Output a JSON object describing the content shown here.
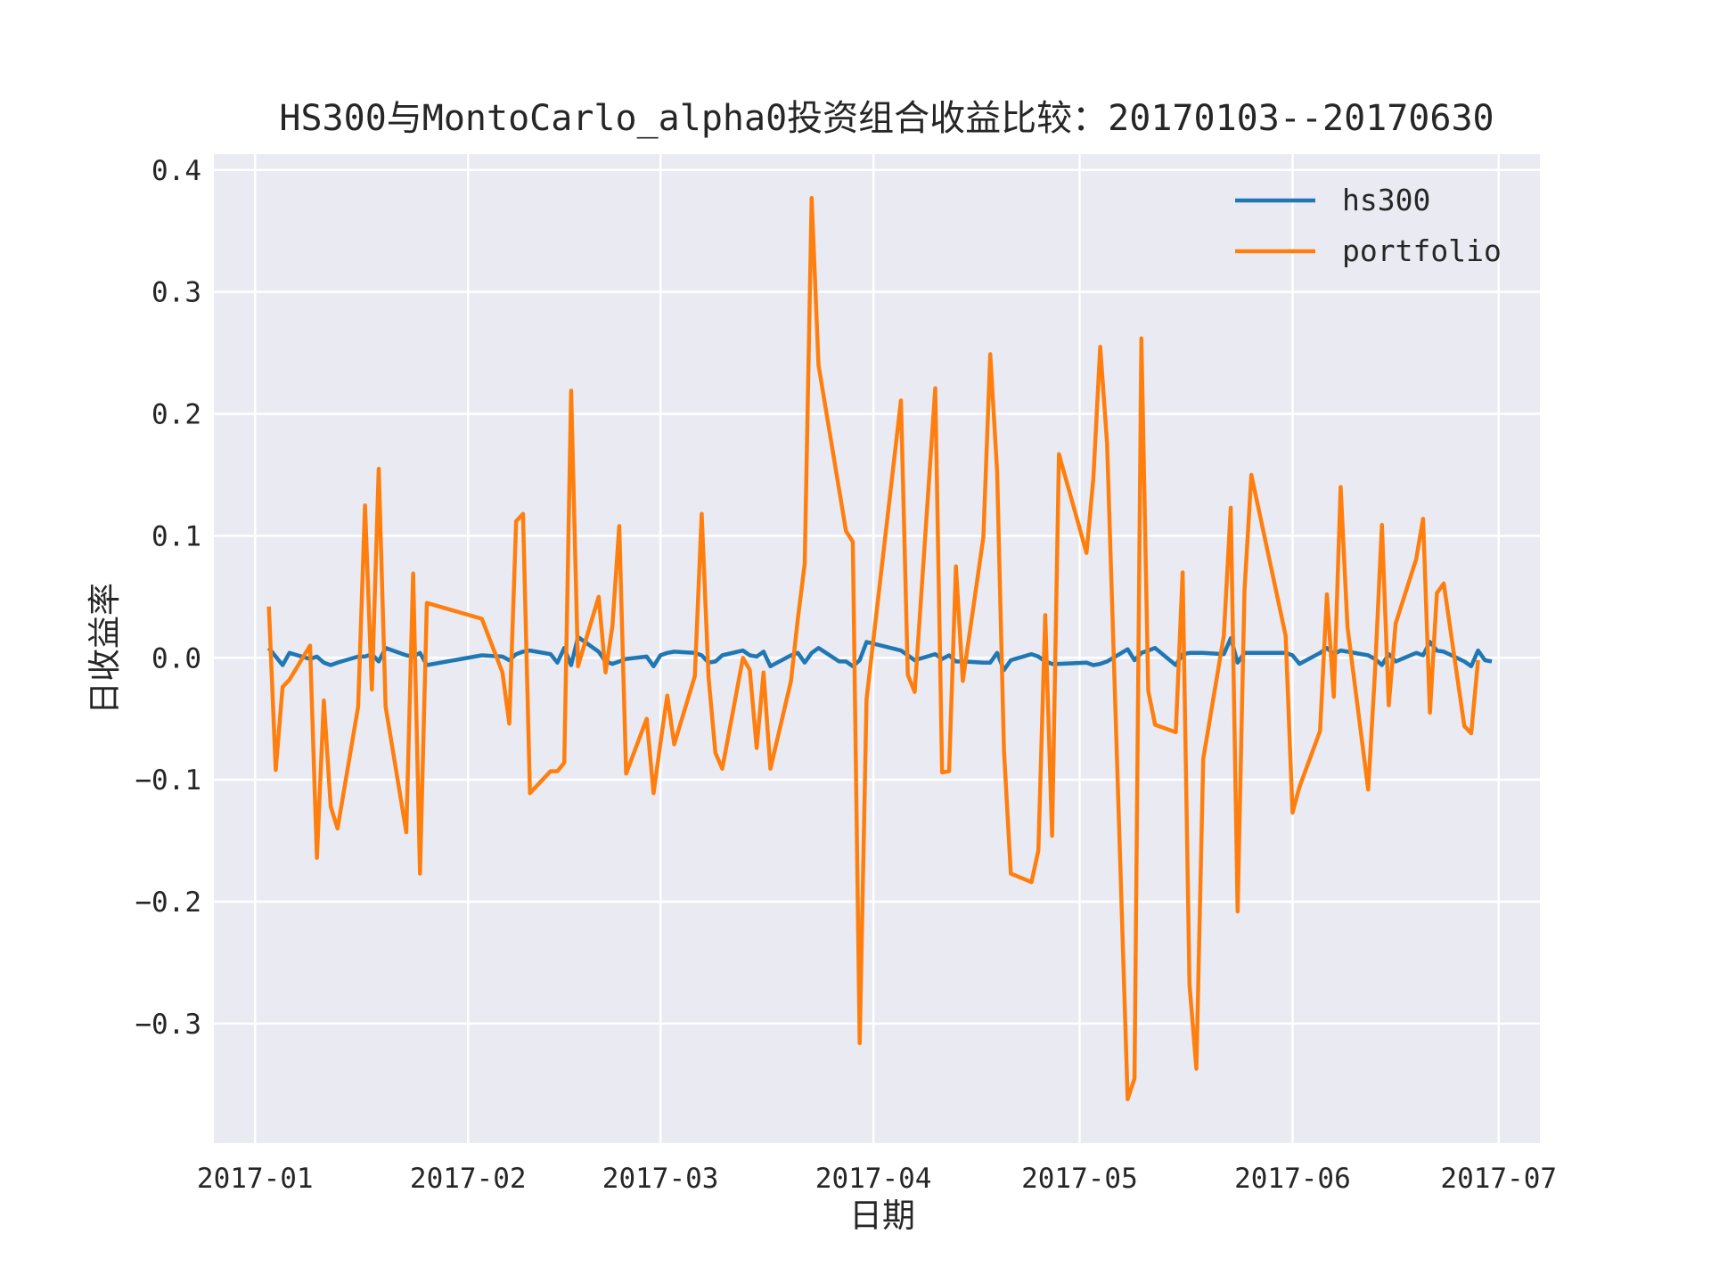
{
  "chart_data": {
    "type": "line",
    "title": "HS300与MontoCarlo_alpha0投资组合收益比较：20170103--20170630",
    "xlabel": "日期",
    "ylabel": "日收益率",
    "x_type": "date",
    "xlim": [
      "2016-12-26",
      "2017-07-07"
    ],
    "ylim": [
      -0.398,
      0.413
    ],
    "x_ticks": [
      "2017-01-01",
      "2017-02-01",
      "2017-03-01",
      "2017-04-01",
      "2017-05-01",
      "2017-06-01",
      "2017-07-01"
    ],
    "x_tick_labels": [
      "2017-01",
      "2017-02",
      "2017-03",
      "2017-04",
      "2017-05",
      "2017-06",
      "2017-07"
    ],
    "y_ticks": [
      -0.3,
      -0.2,
      -0.1,
      0.0,
      0.1,
      0.2,
      0.3,
      0.4
    ],
    "y_tick_labels": [
      "−0.3",
      "−0.2",
      "−0.1",
      "0.0",
      "0.1",
      "0.2",
      "0.3",
      "0.4"
    ],
    "grid": true,
    "legend_position": "top-right",
    "background": "#EAEAF2",
    "series": [
      {
        "name": "hs300",
        "color": "#1F77B4",
        "points": [
          [
            "2017-01-03",
            0.008
          ],
          [
            "2017-01-04",
            0.001
          ],
          [
            "2017-01-05",
            -0.006
          ],
          [
            "2017-01-06",
            0.004
          ],
          [
            "2017-01-09",
            -0.001
          ],
          [
            "2017-01-10",
            0.001
          ],
          [
            "2017-01-11",
            -0.004
          ],
          [
            "2017-01-12",
            -0.006
          ],
          [
            "2017-01-13",
            -0.004
          ],
          [
            "2017-01-16",
            0.001
          ],
          [
            "2017-01-17",
            0.001
          ],
          [
            "2017-01-18",
            0.003
          ],
          [
            "2017-01-19",
            -0.003
          ],
          [
            "2017-01-20",
            0.008
          ],
          [
            "2017-01-23",
            0.002
          ],
          [
            "2017-01-24",
            0.001
          ],
          [
            "2017-01-25",
            0.004
          ],
          [
            "2017-01-26",
            -0.006
          ],
          [
            "2017-02-03",
            0.002
          ],
          [
            "2017-02-06",
            0.001
          ],
          [
            "2017-02-07",
            -0.002
          ],
          [
            "2017-02-08",
            0.003
          ],
          [
            "2017-02-09",
            0.005
          ],
          [
            "2017-02-10",
            0.006
          ],
          [
            "2017-02-13",
            0.003
          ],
          [
            "2017-02-14",
            -0.004
          ],
          [
            "2017-02-15",
            0.008
          ],
          [
            "2017-02-16",
            -0.006
          ],
          [
            "2017-02-17",
            0.017
          ],
          [
            "2017-02-20",
            0.005
          ],
          [
            "2017-02-21",
            -0.003
          ],
          [
            "2017-02-22",
            -0.005
          ],
          [
            "2017-02-23",
            -0.003
          ],
          [
            "2017-02-24",
            -0.001
          ],
          [
            "2017-02-27",
            0.001
          ],
          [
            "2017-02-28",
            -0.007
          ],
          [
            "2017-03-01",
            0.002
          ],
          [
            "2017-03-02",
            0.004
          ],
          [
            "2017-03-03",
            0.005
          ],
          [
            "2017-03-06",
            0.004
          ],
          [
            "2017-03-07",
            0.002
          ],
          [
            "2017-03-08",
            -0.004
          ],
          [
            "2017-03-09",
            -0.003
          ],
          [
            "2017-03-10",
            0.002
          ],
          [
            "2017-03-13",
            0.006
          ],
          [
            "2017-03-14",
            0.002
          ],
          [
            "2017-03-15",
            0.001
          ],
          [
            "2017-03-16",
            0.005
          ],
          [
            "2017-03-17",
            -0.007
          ],
          [
            "2017-03-20",
            0.002
          ],
          [
            "2017-03-21",
            0.004
          ],
          [
            "2017-03-22",
            -0.004
          ],
          [
            "2017-03-23",
            0.004
          ],
          [
            "2017-03-24",
            0.008
          ],
          [
            "2017-03-27",
            -0.003
          ],
          [
            "2017-03-28",
            -0.003
          ],
          [
            "2017-03-29",
            -0.007
          ],
          [
            "2017-03-30",
            -0.002
          ],
          [
            "2017-03-31",
            0.013
          ],
          [
            "2017-04-05",
            0.006
          ],
          [
            "2017-04-06",
            0.002
          ],
          [
            "2017-04-07",
            -0.002
          ],
          [
            "2017-04-10",
            0.003
          ],
          [
            "2017-04-11",
            -0.001
          ],
          [
            "2017-04-12",
            0.002
          ],
          [
            "2017-04-13",
            -0.003
          ],
          [
            "2017-04-14",
            -0.003
          ],
          [
            "2017-04-17",
            -0.004
          ],
          [
            "2017-04-18",
            -0.004
          ],
          [
            "2017-04-19",
            0.004
          ],
          [
            "2017-04-20",
            -0.01
          ],
          [
            "2017-04-21",
            -0.002
          ],
          [
            "2017-04-24",
            0.003
          ],
          [
            "2017-04-25",
            0.001
          ],
          [
            "2017-04-26",
            -0.003
          ],
          [
            "2017-04-27",
            -0.005
          ],
          [
            "2017-04-28",
            -0.005
          ],
          [
            "2017-05-02",
            -0.004
          ],
          [
            "2017-05-03",
            -0.006
          ],
          [
            "2017-05-04",
            -0.005
          ],
          [
            "2017-05-05",
            -0.003
          ],
          [
            "2017-05-08",
            0.007
          ],
          [
            "2017-05-09",
            -0.002
          ],
          [
            "2017-05-10",
            0.004
          ],
          [
            "2017-05-11",
            0.006
          ],
          [
            "2017-05-12",
            0.008
          ],
          [
            "2017-05-15",
            -0.006
          ],
          [
            "2017-05-16",
            0.003
          ],
          [
            "2017-05-17",
            0.004
          ],
          [
            "2017-05-18",
            0.004
          ],
          [
            "2017-05-19",
            0.004
          ],
          [
            "2017-05-22",
            0.003
          ],
          [
            "2017-05-23",
            0.016
          ],
          [
            "2017-05-24",
            -0.004
          ],
          [
            "2017-05-25",
            0.004
          ],
          [
            "2017-05-26",
            0.004
          ],
          [
            "2017-05-31",
            0.004
          ],
          [
            "2017-06-01",
            0.002
          ],
          [
            "2017-06-02",
            -0.005
          ],
          [
            "2017-06-05",
            0.004
          ],
          [
            "2017-06-06",
            0.008
          ],
          [
            "2017-06-07",
            0.003
          ],
          [
            "2017-06-08",
            0.006
          ],
          [
            "2017-06-09",
            0.005
          ],
          [
            "2017-06-12",
            0.002
          ],
          [
            "2017-06-13",
            -0.001
          ],
          [
            "2017-06-14",
            -0.006
          ],
          [
            "2017-06-15",
            0.003
          ],
          [
            "2017-06-16",
            -0.003
          ],
          [
            "2017-06-19",
            0.004
          ],
          [
            "2017-06-20",
            0.002
          ],
          [
            "2017-06-21",
            0.013
          ],
          [
            "2017-06-22",
            0.006
          ],
          [
            "2017-06-23",
            0.005
          ],
          [
            "2017-06-26",
            -0.003
          ],
          [
            "2017-06-27",
            -0.007
          ],
          [
            "2017-06-28",
            0.006
          ],
          [
            "2017-06-29",
            -0.002
          ],
          [
            "2017-06-30",
            -0.003
          ]
        ]
      },
      {
        "name": "portfolio",
        "color": "#FF7F0E",
        "points": [
          [
            "2017-01-03",
            0.042
          ],
          [
            "2017-01-04",
            -0.092
          ],
          [
            "2017-01-05",
            -0.024
          ],
          [
            "2017-01-06",
            -0.018
          ],
          [
            "2017-01-09",
            0.01
          ],
          [
            "2017-01-10",
            -0.164
          ],
          [
            "2017-01-11",
            -0.035
          ],
          [
            "2017-01-12",
            -0.122
          ],
          [
            "2017-01-13",
            -0.14
          ],
          [
            "2017-01-16",
            -0.04
          ],
          [
            "2017-01-17",
            0.125
          ],
          [
            "2017-01-18",
            -0.026
          ],
          [
            "2017-01-19",
            0.155
          ],
          [
            "2017-01-20",
            -0.04
          ],
          [
            "2017-01-23",
            -0.143
          ],
          [
            "2017-01-24",
            0.069
          ],
          [
            "2017-01-25",
            -0.177
          ],
          [
            "2017-01-26",
            0.045
          ],
          [
            "2017-02-03",
            0.032
          ],
          [
            "2017-02-06",
            -0.012
          ],
          [
            "2017-02-07",
            -0.054
          ],
          [
            "2017-02-08",
            0.112
          ],
          [
            "2017-02-09",
            0.118
          ],
          [
            "2017-02-10",
            -0.111
          ],
          [
            "2017-02-13",
            -0.093
          ],
          [
            "2017-02-14",
            -0.093
          ],
          [
            "2017-02-15",
            -0.086
          ],
          [
            "2017-02-16",
            0.219
          ],
          [
            "2017-02-17",
            -0.007
          ],
          [
            "2017-02-20",
            0.05
          ],
          [
            "2017-02-21",
            -0.012
          ],
          [
            "2017-02-22",
            0.026
          ],
          [
            "2017-02-23",
            0.108
          ],
          [
            "2017-02-24",
            -0.095
          ],
          [
            "2017-02-27",
            -0.05
          ],
          [
            "2017-02-28",
            -0.111
          ],
          [
            "2017-03-01",
            -0.07
          ],
          [
            "2017-03-02",
            -0.031
          ],
          [
            "2017-03-03",
            -0.071
          ],
          [
            "2017-03-06",
            -0.015
          ],
          [
            "2017-03-07",
            0.118
          ],
          [
            "2017-03-08",
            -0.016
          ],
          [
            "2017-03-09",
            -0.078
          ],
          [
            "2017-03-10",
            -0.091
          ],
          [
            "2017-03-13",
            0.0
          ],
          [
            "2017-03-14",
            -0.01
          ],
          [
            "2017-03-15",
            -0.074
          ],
          [
            "2017-03-16",
            -0.012
          ],
          [
            "2017-03-17",
            -0.091
          ],
          [
            "2017-03-20",
            -0.019
          ],
          [
            "2017-03-21",
            0.032
          ],
          [
            "2017-03-22",
            0.077
          ],
          [
            "2017-03-23",
            0.377
          ],
          [
            "2017-03-24",
            0.24
          ],
          [
            "2017-03-27",
            0.138
          ],
          [
            "2017-03-28",
            0.104
          ],
          [
            "2017-03-29",
            0.095
          ],
          [
            "2017-03-30",
            -0.316
          ],
          [
            "2017-03-31",
            -0.034
          ],
          [
            "2017-04-05",
            0.211
          ],
          [
            "2017-04-06",
            -0.014
          ],
          [
            "2017-04-07",
            -0.028
          ],
          [
            "2017-04-10",
            0.221
          ],
          [
            "2017-04-11",
            -0.094
          ],
          [
            "2017-04-12",
            -0.093
          ],
          [
            "2017-04-13",
            0.075
          ],
          [
            "2017-04-14",
            -0.019
          ],
          [
            "2017-04-17",
            0.099
          ],
          [
            "2017-04-18",
            0.249
          ],
          [
            "2017-04-19",
            0.153
          ],
          [
            "2017-04-20",
            -0.076
          ],
          [
            "2017-04-21",
            -0.177
          ],
          [
            "2017-04-24",
            -0.184
          ],
          [
            "2017-04-25",
            -0.158
          ],
          [
            "2017-04-26",
            0.035
          ],
          [
            "2017-04-27",
            -0.146
          ],
          [
            "2017-04-28",
            0.167
          ],
          [
            "2017-05-02",
            0.086
          ],
          [
            "2017-05-03",
            0.147
          ],
          [
            "2017-05-04",
            0.255
          ],
          [
            "2017-05-05",
            0.176
          ],
          [
            "2017-05-08",
            -0.362
          ],
          [
            "2017-05-09",
            -0.345
          ],
          [
            "2017-05-10",
            0.262
          ],
          [
            "2017-05-11",
            -0.027
          ],
          [
            "2017-05-12",
            -0.055
          ],
          [
            "2017-05-15",
            -0.061
          ],
          [
            "2017-05-16",
            0.07
          ],
          [
            "2017-05-17",
            -0.268
          ],
          [
            "2017-05-18",
            -0.337
          ],
          [
            "2017-05-19",
            -0.083
          ],
          [
            "2017-05-22",
            0.018
          ],
          [
            "2017-05-23",
            0.123
          ],
          [
            "2017-05-24",
            -0.208
          ],
          [
            "2017-05-25",
            0.055
          ],
          [
            "2017-05-26",
            0.15
          ],
          [
            "2017-05-31",
            0.018
          ],
          [
            "2017-06-01",
            -0.127
          ],
          [
            "2017-06-02",
            -0.106
          ],
          [
            "2017-06-05",
            -0.06
          ],
          [
            "2017-06-06",
            0.052
          ],
          [
            "2017-06-07",
            -0.032
          ],
          [
            "2017-06-08",
            0.14
          ],
          [
            "2017-06-09",
            0.025
          ],
          [
            "2017-06-12",
            -0.108
          ],
          [
            "2017-06-13",
            -0.011
          ],
          [
            "2017-06-14",
            0.109
          ],
          [
            "2017-06-15",
            -0.039
          ],
          [
            "2017-06-16",
            0.028
          ],
          [
            "2017-06-19",
            0.081
          ],
          [
            "2017-06-20",
            0.114
          ],
          [
            "2017-06-21",
            -0.045
          ],
          [
            "2017-06-22",
            0.053
          ],
          [
            "2017-06-23",
            0.061
          ],
          [
            "2017-06-26",
            -0.056
          ],
          [
            "2017-06-27",
            -0.062
          ],
          [
            "2017-06-28",
            -0.002
          ]
        ]
      }
    ]
  }
}
